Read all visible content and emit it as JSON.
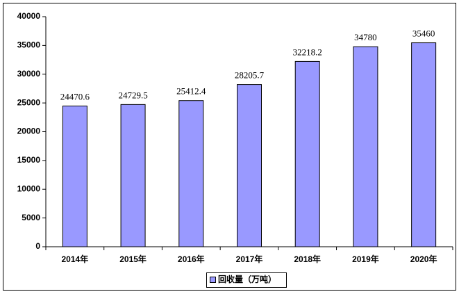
{
  "chart_data": {
    "type": "bar",
    "categories": [
      "2014年",
      "2015年",
      "2016年",
      "2017年",
      "2018年",
      "2019年",
      "2020年"
    ],
    "series": [
      {
        "name": "回收量（万吨）",
        "color": "#9999ff",
        "values": [
          24470.6,
          24729.5,
          25412.4,
          28205.7,
          32218.2,
          34780,
          35460
        ]
      }
    ],
    "ylim": [
      0,
      40000
    ],
    "yticks": [
      0,
      5000,
      10000,
      15000,
      20000,
      25000,
      30000,
      35000,
      40000
    ],
    "legend": "bottom",
    "data_labels": true
  }
}
